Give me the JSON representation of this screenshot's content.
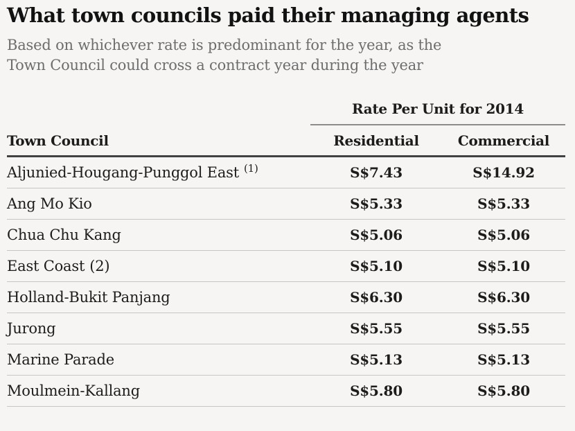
{
  "chart_data": {
    "type": "table",
    "title": "What town councils paid their managing agents",
    "subtitle_lines": [
      "Based on whichever rate is predominant for the year, as the",
      "Town Council could cross a contract year during the year"
    ],
    "column_group_header": "Rate Per Unit for 2014",
    "columns": {
      "council": "Town Council",
      "residential": "Residential",
      "commercial": "Commercial"
    },
    "rows": [
      {
        "council": "Aljunied-Hougang-Punggol East",
        "note": "(1)",
        "note_class": "note sup",
        "residential": "S$7.43",
        "commercial": "S$14.92"
      },
      {
        "council": "Ang Mo Kio",
        "note": "",
        "note_class": "note",
        "residential": "S$5.33",
        "commercial": "S$5.33"
      },
      {
        "council": "Chua Chu Kang",
        "note": "",
        "note_class": "note",
        "residential": "S$5.06",
        "commercial": "S$5.06"
      },
      {
        "council": "East Coast",
        "note": "(2)",
        "note_class": "note",
        "residential": "S$5.10",
        "commercial": "S$5.10"
      },
      {
        "council": "Holland-Bukit Panjang",
        "note": "",
        "note_class": "note",
        "residential": "S$6.30",
        "commercial": "S$6.30"
      },
      {
        "council": "Jurong",
        "note": "",
        "note_class": "note",
        "residential": "S$5.55",
        "commercial": "S$5.55"
      },
      {
        "council": "Marine Parade",
        "note": "",
        "note_class": "note",
        "residential": "S$5.13",
        "commercial": "S$5.13"
      },
      {
        "council": "Moulmein-Kallang",
        "note": "",
        "note_class": "note",
        "residential": "S$5.80",
        "commercial": "S$5.80"
      }
    ]
  },
  "colors": {
    "background": "#f6f5f3",
    "title_text": "#121212",
    "subtitle_text": "#6d6d6d",
    "body_text": "#1d1c1b",
    "heavy_rule": "#414141",
    "group_rule": "#8c8c8c",
    "row_rule": "#c6c6c4"
  }
}
